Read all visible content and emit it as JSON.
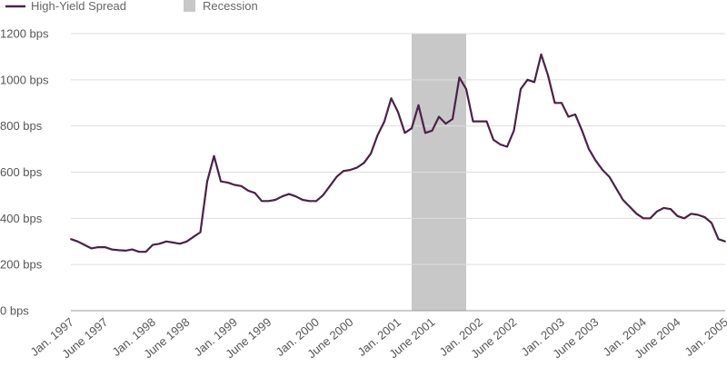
{
  "chart_data": {
    "type": "line",
    "title": "",
    "xlabel": "",
    "ylabel": "",
    "ylim": [
      0,
      1200
    ],
    "xlim": [
      "1997-01",
      "2005-01"
    ],
    "grid": "horizontal",
    "legend": "top-left",
    "colors": {
      "line": "#4b2248",
      "recession": "#c8c8c8",
      "grid": "#dddddd"
    },
    "y_ticks": [
      {
        "value": 0,
        "label": "0 bps"
      },
      {
        "value": 200,
        "label": "200 bps"
      },
      {
        "value": 400,
        "label": "400 bps"
      },
      {
        "value": 600,
        "label": "600 bps"
      },
      {
        "value": 800,
        "label": "800 bps"
      },
      {
        "value": 1000,
        "label": "1000 bps"
      },
      {
        "value": 1200,
        "label": "1200 bps"
      }
    ],
    "x_ticks": [
      {
        "date": "1997-01",
        "label": "Jan. 1997"
      },
      {
        "date": "1997-06",
        "label": "June 1997"
      },
      {
        "date": "1998-01",
        "label": "Jan. 1998"
      },
      {
        "date": "1998-06",
        "label": "June 1998"
      },
      {
        "date": "1999-01",
        "label": "Jan. 1999"
      },
      {
        "date": "1999-06",
        "label": "June 1999"
      },
      {
        "date": "2000-01",
        "label": "Jan. 2000"
      },
      {
        "date": "2000-06",
        "label": "June 2000"
      },
      {
        "date": "2001-01",
        "label": "Jan. 2001"
      },
      {
        "date": "2001-06",
        "label": "June 2001"
      },
      {
        "date": "2002-01",
        "label": "Jan. 2002"
      },
      {
        "date": "2002-06",
        "label": "June 2002"
      },
      {
        "date": "2003-01",
        "label": "Jan. 2003"
      },
      {
        "date": "2003-06",
        "label": "June 2003"
      },
      {
        "date": "2004-01",
        "label": "Jan. 2004"
      },
      {
        "date": "2004-06",
        "label": "June 2004"
      },
      {
        "date": "2005-01",
        "label": "Jan. 2005"
      }
    ],
    "recession": {
      "name": "Recession",
      "start": "2001-03",
      "end": "2001-11"
    },
    "series": [
      {
        "name": "High-Yield Spread",
        "points": [
          [
            "1997-01",
            310
          ],
          [
            "1997-02",
            300
          ],
          [
            "1997-03",
            285
          ],
          [
            "1997-04",
            270
          ],
          [
            "1997-05",
            275
          ],
          [
            "1997-06",
            275
          ],
          [
            "1997-07",
            265
          ],
          [
            "1997-08",
            262
          ],
          [
            "1997-09",
            260
          ],
          [
            "1997-10",
            265
          ],
          [
            "1997-11",
            255
          ],
          [
            "1997-12",
            255
          ],
          [
            "1998-01",
            285
          ],
          [
            "1998-02",
            290
          ],
          [
            "1998-03",
            300
          ],
          [
            "1998-04",
            295
          ],
          [
            "1998-05",
            290
          ],
          [
            "1998-06",
            300
          ],
          [
            "1998-07",
            320
          ],
          [
            "1998-08",
            340
          ],
          [
            "1998-09",
            560
          ],
          [
            "1998-10",
            670
          ],
          [
            "1998-11",
            560
          ],
          [
            "1998-12",
            555
          ],
          [
            "1999-01",
            545
          ],
          [
            "1999-02",
            540
          ],
          [
            "1999-03",
            520
          ],
          [
            "1999-04",
            510
          ],
          [
            "1999-05",
            475
          ],
          [
            "1999-06",
            475
          ],
          [
            "1999-07",
            480
          ],
          [
            "1999-08",
            495
          ],
          [
            "1999-09",
            505
          ],
          [
            "1999-10",
            495
          ],
          [
            "1999-11",
            480
          ],
          [
            "1999-12",
            475
          ],
          [
            "2000-01",
            475
          ],
          [
            "2000-02",
            500
          ],
          [
            "2000-03",
            540
          ],
          [
            "2000-04",
            580
          ],
          [
            "2000-05",
            605
          ],
          [
            "2000-06",
            610
          ],
          [
            "2000-07",
            620
          ],
          [
            "2000-08",
            640
          ],
          [
            "2000-09",
            680
          ],
          [
            "2000-10",
            760
          ],
          [
            "2000-11",
            820
          ],
          [
            "2000-12",
            920
          ],
          [
            "2001-01",
            860
          ],
          [
            "2001-02",
            770
          ],
          [
            "2001-03",
            790
          ],
          [
            "2001-04",
            890
          ],
          [
            "2001-05",
            770
          ],
          [
            "2001-06",
            780
          ],
          [
            "2001-07",
            840
          ],
          [
            "2001-08",
            810
          ],
          [
            "2001-09",
            830
          ],
          [
            "2001-10",
            1010
          ],
          [
            "2001-11",
            960
          ],
          [
            "2001-12",
            820
          ],
          [
            "2002-01",
            820
          ],
          [
            "2002-02",
            820
          ],
          [
            "2002-03",
            740
          ],
          [
            "2002-04",
            720
          ],
          [
            "2002-05",
            710
          ],
          [
            "2002-06",
            780
          ],
          [
            "2002-07",
            960
          ],
          [
            "2002-08",
            1000
          ],
          [
            "2002-09",
            990
          ],
          [
            "2002-10",
            1110
          ],
          [
            "2002-11",
            1020
          ],
          [
            "2002-12",
            900
          ],
          [
            "2003-01",
            900
          ],
          [
            "2003-02",
            840
          ],
          [
            "2003-03",
            850
          ],
          [
            "2003-04",
            780
          ],
          [
            "2003-05",
            700
          ],
          [
            "2003-06",
            650
          ],
          [
            "2003-07",
            610
          ],
          [
            "2003-08",
            580
          ],
          [
            "2003-09",
            530
          ],
          [
            "2003-10",
            480
          ],
          [
            "2003-11",
            450
          ],
          [
            "2003-12",
            420
          ],
          [
            "2004-01",
            400
          ],
          [
            "2004-02",
            400
          ],
          [
            "2004-03",
            430
          ],
          [
            "2004-04",
            445
          ],
          [
            "2004-05",
            440
          ],
          [
            "2004-06",
            410
          ],
          [
            "2004-07",
            400
          ],
          [
            "2004-08",
            420
          ],
          [
            "2004-09",
            415
          ],
          [
            "2004-10",
            405
          ],
          [
            "2004-11",
            380
          ],
          [
            "2004-12",
            310
          ],
          [
            "2005-01",
            300
          ]
        ]
      }
    ]
  }
}
